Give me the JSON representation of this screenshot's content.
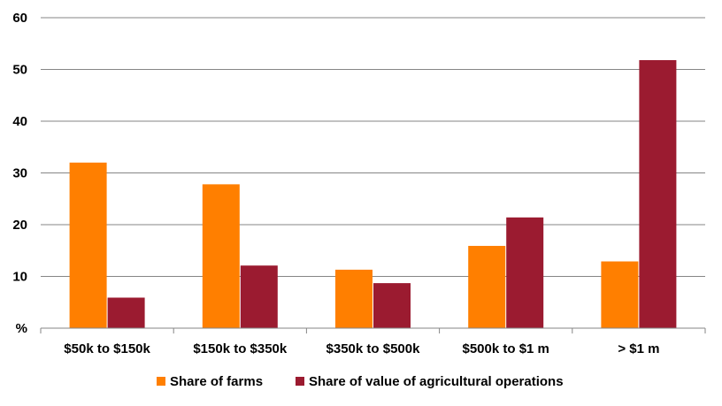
{
  "chart_data": {
    "type": "bar",
    "categories": [
      "$50k to $150k",
      "$150k to $350k",
      "$350k to $500k",
      "$500k to $1 m",
      "> $1 m"
    ],
    "series": [
      {
        "name": "Share of farms",
        "color": "#ff7f00",
        "values": [
          32,
          27.8,
          11.3,
          15.9,
          12.9
        ]
      },
      {
        "name": "Share of value of agricultural operations",
        "color": "#9b1b30",
        "values": [
          5.9,
          12.1,
          8.7,
          21.4,
          51.8
        ]
      }
    ],
    "y_ticks": [
      "%",
      "10",
      "20",
      "30",
      "40",
      "50",
      "60"
    ],
    "ylim": [
      0,
      60
    ],
    "grid": true,
    "legend": "bottom"
  }
}
